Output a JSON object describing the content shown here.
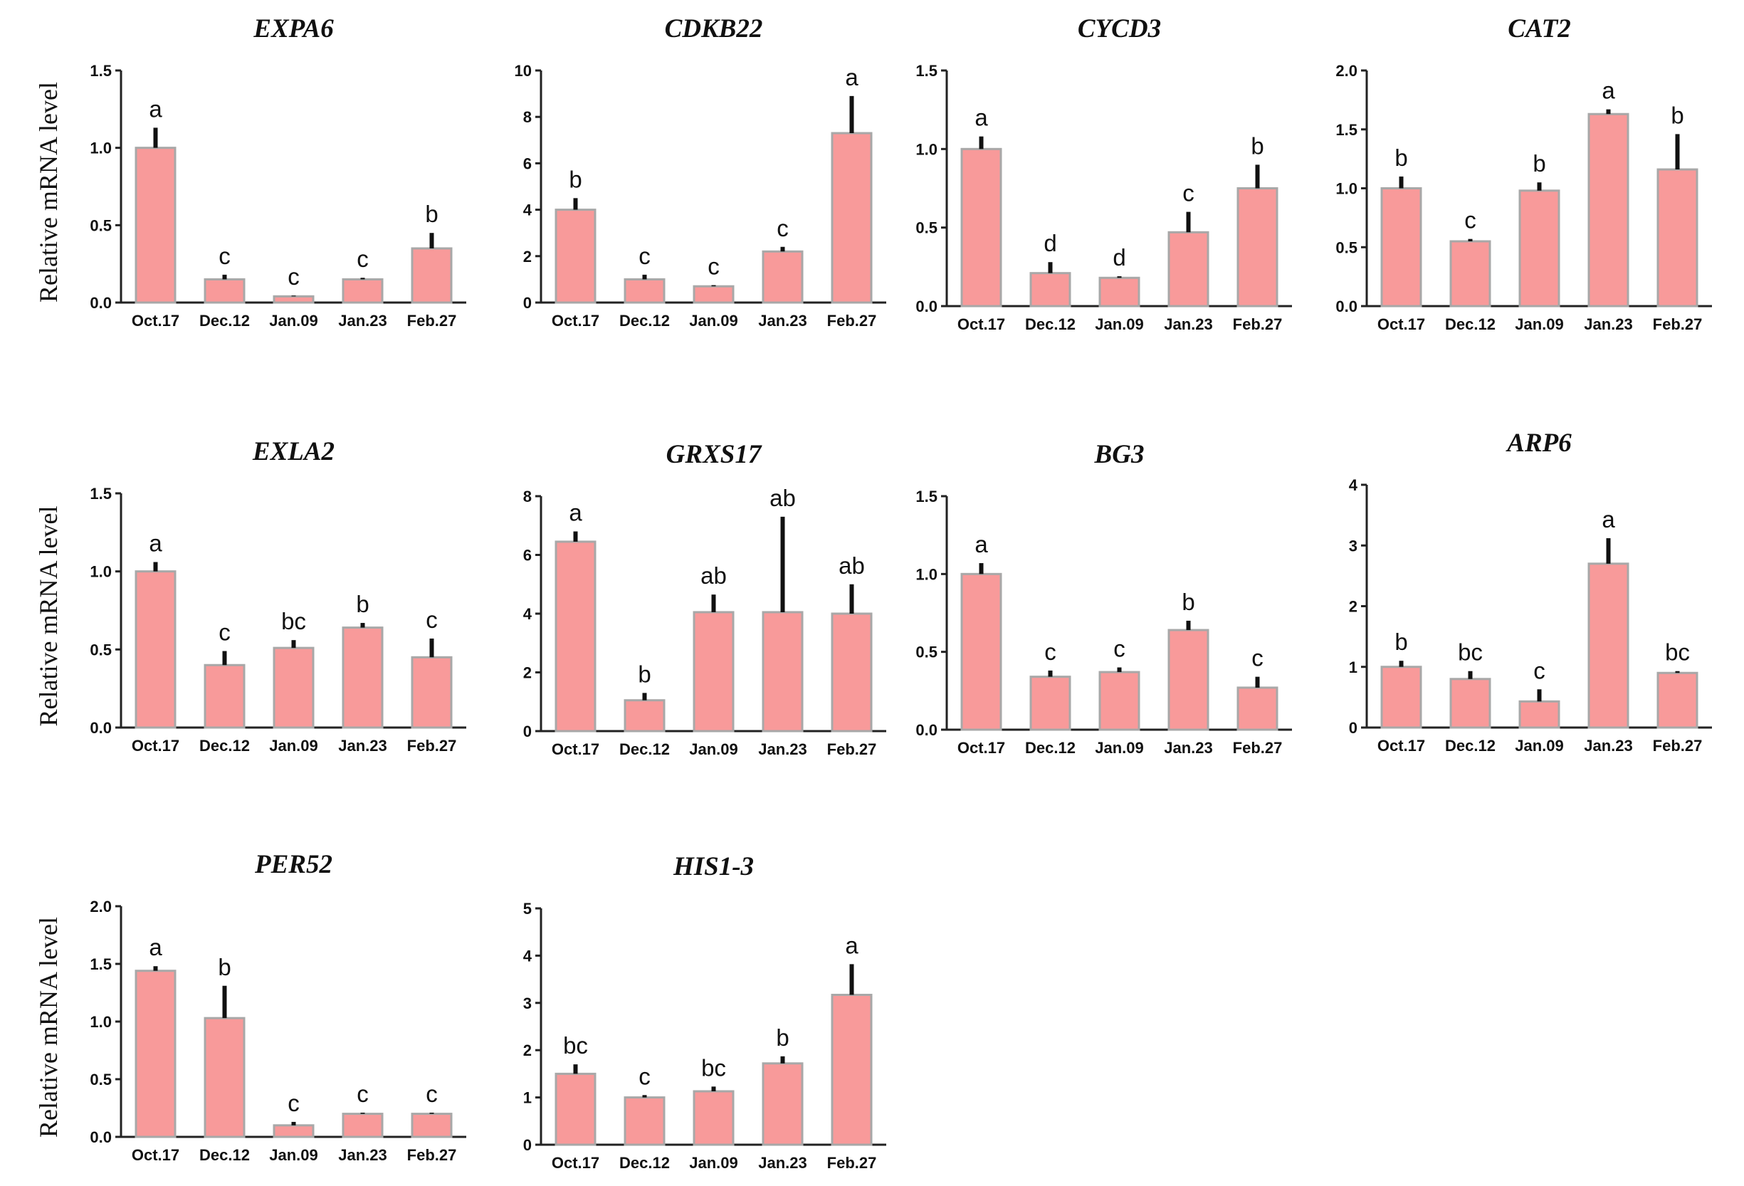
{
  "bar_color": "#f89a9a",
  "bar_border": "#a8a8a8",
  "axis_color": "#222222",
  "chart_data": [
    {
      "type": "bar",
      "title": "EXPA6",
      "ylabel": "Relative mRNA level",
      "categories": [
        "Oct.17",
        "Dec.12",
        "Jan.09",
        "Jan.23",
        "Feb.27"
      ],
      "values": [
        1.0,
        0.15,
        0.04,
        0.15,
        0.35
      ],
      "errors": [
        0.13,
        0.03,
        0.005,
        0.01,
        0.1
      ],
      "letters": [
        "a",
        "c",
        "c",
        "c",
        "b"
      ],
      "ylim": [
        0,
        1.5
      ],
      "yticks": [
        "0.0",
        "0.5",
        "1.0",
        "1.5"
      ]
    },
    {
      "type": "bar",
      "title": "CDKB22",
      "ylabel": "",
      "categories": [
        "Oct.17",
        "Dec.12",
        "Jan.09",
        "Jan.23",
        "Feb.27"
      ],
      "values": [
        4.0,
        1.0,
        0.7,
        2.2,
        7.3
      ],
      "errors": [
        0.5,
        0.2,
        0.05,
        0.2,
        1.6
      ],
      "letters": [
        "b",
        "c",
        "c",
        "c",
        "a"
      ],
      "ylim": [
        0,
        10
      ],
      "yticks": [
        "0",
        "2",
        "4",
        "6",
        "8",
        "10"
      ]
    },
    {
      "type": "bar",
      "title": "CYCD3",
      "ylabel": "",
      "categories": [
        "Oct.17",
        "Dec.12",
        "Jan.09",
        "Jan.23",
        "Feb.27"
      ],
      "values": [
        1.0,
        0.21,
        0.18,
        0.47,
        0.75
      ],
      "errors": [
        0.08,
        0.07,
        0.01,
        0.13,
        0.15
      ],
      "letters": [
        "a",
        "d",
        "d",
        "c",
        "b"
      ],
      "ylim": [
        0,
        1.5
      ],
      "yticks": [
        "0.0",
        "0.5",
        "1.0",
        "1.5"
      ]
    },
    {
      "type": "bar",
      "title": "CAT2",
      "ylabel": "",
      "categories": [
        "Oct.17",
        "Dec.12",
        "Jan.09",
        "Jan.23",
        "Feb.27"
      ],
      "values": [
        1.0,
        0.55,
        0.98,
        1.63,
        1.16
      ],
      "errors": [
        0.1,
        0.02,
        0.07,
        0.04,
        0.3
      ],
      "letters": [
        "b",
        "c",
        "b",
        "a",
        "b"
      ],
      "ylim": [
        0,
        2.0
      ],
      "yticks": [
        "0.0",
        "0.5",
        "1.0",
        "1.5",
        "2.0"
      ]
    },
    {
      "type": "bar",
      "title": "EXLA2",
      "ylabel": "Relative mRNA level",
      "categories": [
        "Oct.17",
        "Dec.12",
        "Jan.09",
        "Jan.23",
        "Feb.27"
      ],
      "values": [
        1.0,
        0.4,
        0.51,
        0.64,
        0.45
      ],
      "errors": [
        0.06,
        0.09,
        0.05,
        0.03,
        0.12
      ],
      "letters": [
        "a",
        "c",
        "bc",
        "b",
        "c"
      ],
      "ylim": [
        0,
        1.5
      ],
      "yticks": [
        "0.0",
        "0.5",
        "1.0",
        "1.5"
      ]
    },
    {
      "type": "bar",
      "title": "GRXS17",
      "ylabel": "",
      "categories": [
        "Oct.17",
        "Dec.12",
        "Jan.09",
        "Jan.23",
        "Feb.27"
      ],
      "values": [
        6.45,
        1.05,
        4.05,
        4.05,
        4.0
      ],
      "errors": [
        0.35,
        0.25,
        0.6,
        3.25,
        1.0
      ],
      "letters": [
        "a",
        "b",
        "ab",
        "ab",
        "ab"
      ],
      "ylim": [
        0,
        8
      ],
      "yticks": [
        "0",
        "2",
        "4",
        "6",
        "8"
      ]
    },
    {
      "type": "bar",
      "title": "BG3",
      "ylabel": "",
      "categories": [
        "Oct.17",
        "Dec.12",
        "Jan.09",
        "Jan.23",
        "Feb.27"
      ],
      "values": [
        1.0,
        0.34,
        0.37,
        0.64,
        0.27
      ],
      "errors": [
        0.07,
        0.04,
        0.03,
        0.06,
        0.07
      ],
      "letters": [
        "a",
        "c",
        "c",
        "b",
        "c"
      ],
      "ylim": [
        0,
        1.5
      ],
      "yticks": [
        "0.0",
        "0.5",
        "1.0",
        "1.5"
      ]
    },
    {
      "type": "bar",
      "title": "ARP6",
      "ylabel": "",
      "categories": [
        "Oct.17",
        "Dec.12",
        "Jan.09",
        "Jan.23",
        "Feb.27"
      ],
      "values": [
        1.0,
        0.8,
        0.43,
        2.7,
        0.9
      ],
      "errors": [
        0.1,
        0.13,
        0.2,
        0.42,
        0.03
      ],
      "letters": [
        "b",
        "bc",
        "c",
        "a",
        "bc"
      ],
      "ylim": [
        0,
        4
      ],
      "yticks": [
        "0",
        "1",
        "2",
        "3",
        "4"
      ]
    },
    {
      "type": "bar",
      "title": "PER52",
      "ylabel": "Relative mRNA level",
      "categories": [
        "Oct.17",
        "Dec.12",
        "Jan.09",
        "Jan.23",
        "Feb.27"
      ],
      "values": [
        1.44,
        1.03,
        0.1,
        0.2,
        0.2
      ],
      "errors": [
        0.04,
        0.28,
        0.03,
        0.01,
        0.01
      ],
      "letters": [
        "a",
        "b",
        "c",
        "c",
        "c"
      ],
      "ylim": [
        0,
        2.0
      ],
      "yticks": [
        "0.0",
        "0.5",
        "1.0",
        "1.5",
        "2.0"
      ]
    },
    {
      "type": "bar",
      "title": "HIS1-3",
      "ylabel": "",
      "categories": [
        "Oct.17",
        "Dec.12",
        "Jan.09",
        "Jan.23",
        "Feb.27"
      ],
      "values": [
        1.5,
        1.0,
        1.13,
        1.72,
        3.17
      ],
      "errors": [
        0.2,
        0.05,
        0.1,
        0.15,
        0.65
      ],
      "letters": [
        "bc",
        "c",
        "bc",
        "b",
        "a"
      ],
      "ylim": [
        0,
        5
      ],
      "yticks": [
        "0",
        "1",
        "2",
        "3",
        "4",
        "5"
      ]
    }
  ]
}
